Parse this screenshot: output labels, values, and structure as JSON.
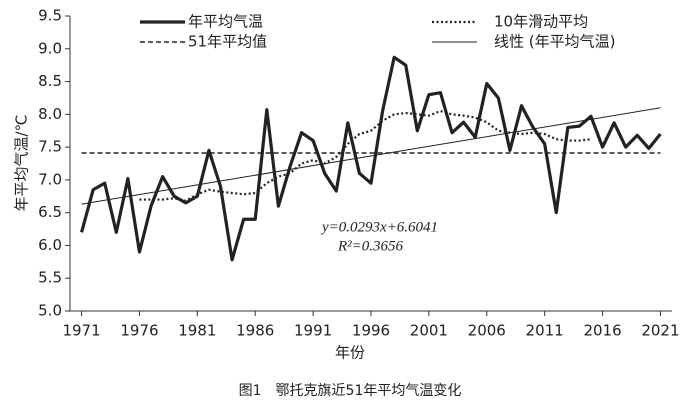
{
  "chart_data": {
    "type": "line",
    "xlabel": "年份",
    "ylabel": "年平均气温/℃",
    "caption": "图1　鄂托克旗近51年平均气温变化",
    "annotations": [
      "y=0.0293x+6.6041",
      "R²=0.3656"
    ],
    "x": [
      1971,
      1972,
      1973,
      1974,
      1975,
      1976,
      1977,
      1978,
      1979,
      1980,
      1981,
      1982,
      1983,
      1984,
      1985,
      1986,
      1987,
      1988,
      1989,
      1990,
      1991,
      1992,
      1993,
      1994,
      1995,
      1996,
      1997,
      1998,
      1999,
      2000,
      2001,
      2002,
      2003,
      2004,
      2005,
      2006,
      2007,
      2008,
      2009,
      2010,
      2011,
      2012,
      2013,
      2014,
      2015,
      2016,
      2017,
      2018,
      2019,
      2020,
      2021
    ],
    "series": [
      {
        "name": "年平均气温",
        "color": "#222222",
        "dash": "solid",
        "values": [
          6.2,
          6.85,
          6.95,
          6.2,
          7.02,
          5.9,
          6.6,
          7.05,
          6.75,
          6.65,
          6.75,
          7.45,
          6.9,
          5.78,
          6.4,
          6.4,
          8.07,
          6.6,
          7.2,
          7.72,
          7.6,
          7.1,
          6.83,
          7.87,
          7.1,
          6.95,
          8.05,
          8.87,
          8.75,
          7.75,
          8.3,
          8.33,
          7.72,
          7.88,
          7.65,
          8.47,
          8.25,
          7.45,
          8.13,
          7.8,
          7.55,
          6.5,
          7.8,
          7.82,
          7.97,
          7.5,
          7.87,
          7.5,
          7.68,
          7.48,
          7.7
        ]
      },
      {
        "name": "10年滑动平均",
        "color": "#222222",
        "dash": "dotted",
        "values": [
          null,
          null,
          null,
          null,
          null,
          6.7,
          6.7,
          6.7,
          6.72,
          6.68,
          6.78,
          6.85,
          6.82,
          6.8,
          6.78,
          6.8,
          6.95,
          7.05,
          7.1,
          7.25,
          7.3,
          7.25,
          7.35,
          7.55,
          7.7,
          7.75,
          7.9,
          8.0,
          8.02,
          8.0,
          7.98,
          8.05,
          8.0,
          7.98,
          7.95,
          7.88,
          7.75,
          7.72,
          7.7,
          7.72,
          7.7,
          7.62,
          7.6,
          7.6,
          7.62,
          null,
          null,
          null,
          null,
          null,
          null
        ]
      },
      {
        "name": "51年平均值",
        "color": "#222222",
        "dash": "dashed",
        "x": [
          1971,
          2021
        ],
        "values": [
          7.41,
          7.41
        ]
      },
      {
        "name": "线性 (年平均气温)",
        "color": "#222222",
        "dash": "thin",
        "x": [
          1971,
          2021
        ],
        "values": [
          6.63,
          8.1
        ]
      }
    ],
    "xlim": [
      1970,
      2022
    ],
    "xticks": [
      1971,
      1976,
      1981,
      1986,
      1991,
      1996,
      2001,
      2006,
      2011,
      2016,
      2021
    ],
    "ylim": [
      5,
      9.5
    ],
    "yticks": [
      {
        "value": 5,
        "label": "5.0"
      },
      {
        "value": 5.5,
        "label": "5.5"
      },
      {
        "value": 6,
        "label": "6.0"
      },
      {
        "value": 6.5,
        "label": "6.5"
      },
      {
        "value": 7,
        "label": "7.0"
      },
      {
        "value": 7.5,
        "label": "7.5"
      },
      {
        "value": 8,
        "label": "8.0"
      },
      {
        "value": 8.5,
        "label": "8.5"
      },
      {
        "value": 9,
        "label": "9.0"
      },
      {
        "value": 9.5,
        "label": "9.5"
      }
    ],
    "grid": false
  }
}
